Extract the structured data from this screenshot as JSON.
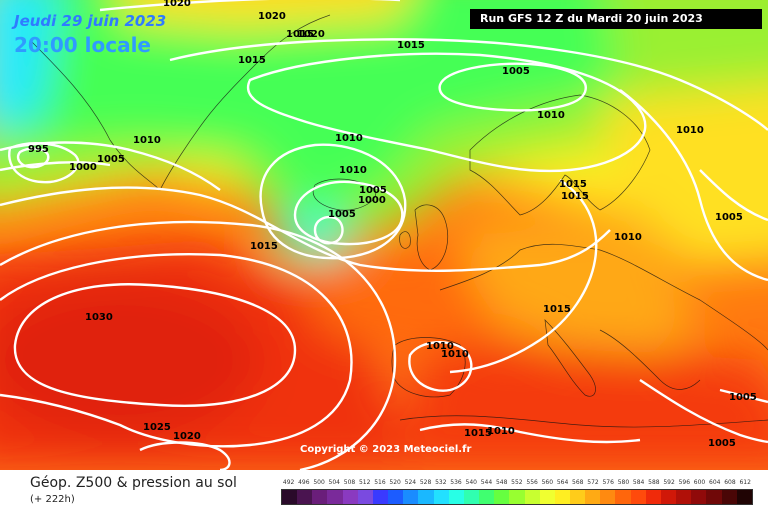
{
  "header": {
    "date": "Jeudi 29 juin 2023",
    "time": "20:00 locale",
    "run": "Run GFS 12 Z du Mardi 20 juin 2023"
  },
  "copyright": "Copyright © 2023 Meteociel.fr",
  "footer": {
    "title": "Géop. Z500 & pression au sol",
    "subtitle": "(+ 222h)"
  },
  "isobar_labels": [
    "1020",
    "1020",
    "1020",
    "1015",
    "1015",
    "1015",
    "1005",
    "1010",
    "1010",
    "1010",
    "995",
    "1000",
    "1005",
    "1010",
    "1010",
    "1005",
    "1000",
    "1005",
    "1015",
    "1015",
    "1015",
    "1005",
    "1005",
    "1015",
    "1030",
    "1010",
    "1010",
    "1025",
    "1020",
    "1015",
    "1010",
    "1005",
    "1010"
  ],
  "scale": {
    "ticks": [
      "492",
      "496",
      "500",
      "504",
      "508",
      "512",
      "516",
      "520",
      "524",
      "528",
      "532",
      "536",
      "540",
      "544",
      "548",
      "552",
      "556",
      "560",
      "564",
      "568",
      "572",
      "576",
      "580",
      "584",
      "588",
      "592",
      "596",
      "600",
      "604",
      "608",
      "612"
    ],
    "colors": [
      "#2a0a2a",
      "#4a1450",
      "#6a1e7a",
      "#7a2a9a",
      "#8a3ac0",
      "#7a4ae0",
      "#3a3aff",
      "#1c5cff",
      "#1a8cff",
      "#1ab8ff",
      "#22e0ff",
      "#28ffe6",
      "#30ffb0",
      "#40ff70",
      "#66ff40",
      "#98ff30",
      "#c8ff30",
      "#f0ff30",
      "#ffee22",
      "#ffcc1a",
      "#ffaa14",
      "#ff8a10",
      "#ff660c",
      "#ff4a0c",
      "#f02a0a",
      "#d01808",
      "#b01008",
      "#900a0a",
      "#700808",
      "#4a0606",
      "#200404"
    ]
  }
}
